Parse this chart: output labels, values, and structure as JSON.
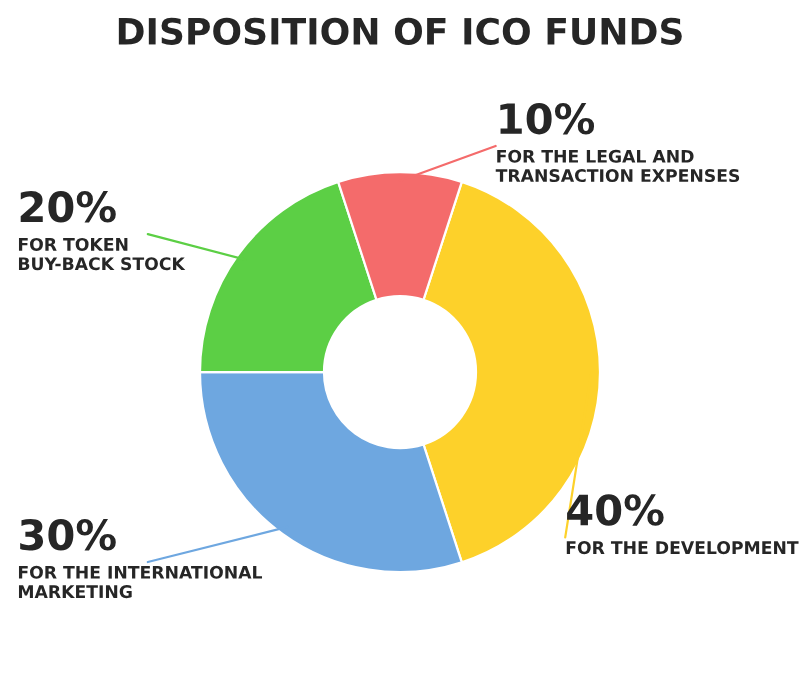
{
  "chart_data": {
    "type": "donut",
    "title": "DISPOSITION OF ICO FUNDS",
    "categories": [
      "FOR THE DEVELOPMENT",
      "FOR THE INTERNATIONAL\nMARKETING",
      "FOR TOKEN\nBUY-BACK STOCK",
      "FOR THE LEGAL AND\nTRANSACTION EXPENSES"
    ],
    "values": [
      40,
      30,
      20,
      10
    ],
    "colors": [
      "#fdd12a",
      "#6ea7e0",
      "#5ccf45",
      "#f46b6b"
    ],
    "value_labels": [
      "40%",
      "30%",
      "20%",
      "10%"
    ]
  }
}
